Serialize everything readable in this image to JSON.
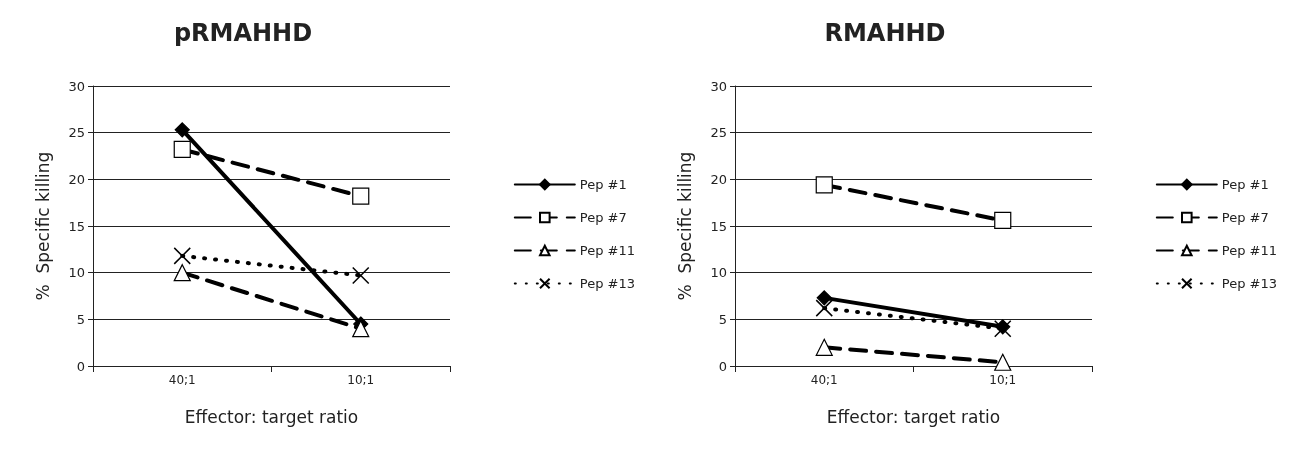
{
  "chart_data": [
    {
      "type": "line",
      "title": "pRMAHHD",
      "xlabel": "Effector: target ratio",
      "ylabel": "%  Specific killing",
      "categories": [
        "40;1",
        "10;1"
      ],
      "ylim": [
        0,
        30
      ],
      "yticks": [
        0,
        5,
        10,
        15,
        20,
        25,
        30
      ],
      "grid": "y",
      "legend": "right",
      "series": [
        {
          "name": "Pep #1",
          "color": "#000000",
          "values": [
            25.3,
            4.5
          ],
          "marker": "diamond",
          "line_style": "solid"
        },
        {
          "name": "Pep #7",
          "color": "#000000",
          "values": [
            23.2,
            18.2
          ],
          "marker": "square",
          "line_style": "dashed"
        },
        {
          "name": "Pep #11",
          "color": "#000000",
          "values": [
            10.0,
            4.0
          ],
          "marker": "triangle",
          "line_style": "dashed"
        },
        {
          "name": "Pep #13",
          "color": "#000000",
          "values": [
            11.8,
            9.7
          ],
          "marker": "cross",
          "line_style": "dotted"
        }
      ]
    },
    {
      "type": "line",
      "title": "RMAHHD",
      "xlabel": "Effector: target ratio",
      "ylabel": "%  Specific killing",
      "categories": [
        "40;1",
        "10;1"
      ],
      "ylim": [
        0,
        30
      ],
      "yticks": [
        0,
        5,
        10,
        15,
        20,
        25,
        30
      ],
      "grid": "y",
      "legend": "right",
      "series": [
        {
          "name": "Pep #1",
          "color": "#000000",
          "values": [
            7.3,
            4.2
          ],
          "marker": "diamond",
          "line_style": "solid"
        },
        {
          "name": "Pep #7",
          "color": "#000000",
          "values": [
            19.4,
            15.6
          ],
          "marker": "square",
          "line_style": "dashed"
        },
        {
          "name": "Pep #11",
          "color": "#000000",
          "values": [
            2.0,
            0.4
          ],
          "marker": "triangle",
          "line_style": "dashed"
        },
        {
          "name": "Pep #13",
          "color": "#000000",
          "values": [
            6.2,
            4.0
          ],
          "marker": "cross",
          "line_style": "dotted"
        }
      ]
    }
  ]
}
